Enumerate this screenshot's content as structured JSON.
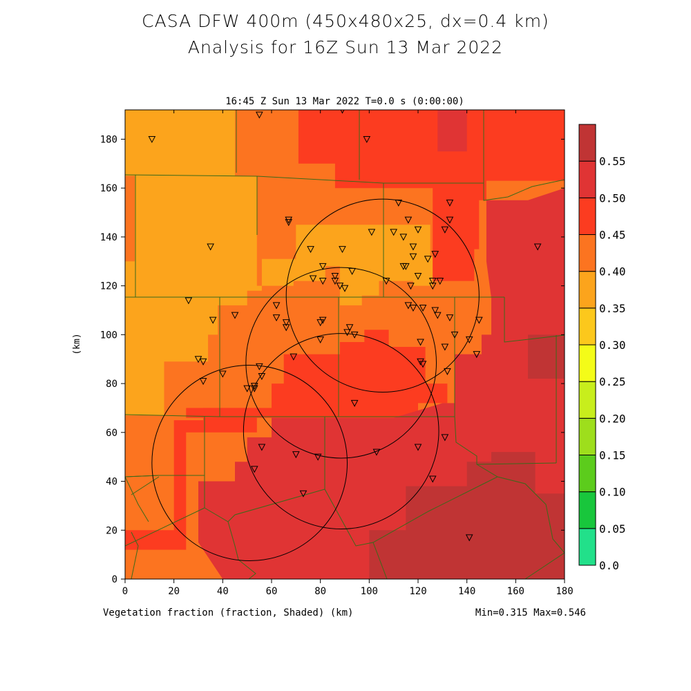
{
  "header": {
    "title_line1": "CASA DFW 400m (450x480x25, dx=0.4 km)",
    "title_line2": "Analysis for 16Z Sun 13 Mar 2022"
  },
  "plot": {
    "subtitle": "16:45 Z Sun 13 Mar 2022    T=0.0 s (0:00:00)",
    "xlabel": "Vegetation fraction (fraction, Shaded)  (km)",
    "ylabel": "(km)",
    "minmax": "Min=0.315 Max=0.546"
  },
  "chart_data": {
    "type": "heatmap",
    "variable": "Vegetation fraction",
    "units": "fraction",
    "xlim": [
      0,
      180
    ],
    "ylim": [
      0,
      192
    ],
    "x_ticks": [
      "0",
      "20",
      "40",
      "60",
      "80",
      "100",
      "120",
      "140",
      "160",
      "180"
    ],
    "y_ticks": [
      "0",
      "20",
      "40",
      "60",
      "80",
      "100",
      "120",
      "140",
      "160",
      "180"
    ],
    "min": 0.315,
    "max": 0.546,
    "colorbar": {
      "levels": [
        "0.0",
        "0.05",
        "0.10",
        "0.15",
        "0.20",
        "0.25",
        "0.30",
        "0.35",
        "0.40",
        "0.45",
        "0.50",
        "0.55"
      ],
      "colors": [
        "#22e08a",
        "#18c63c",
        "#5ccc1c",
        "#9ede1c",
        "#c8ee1c",
        "#f4fc18",
        "#fcc81c",
        "#fca41c",
        "#fc7420",
        "#fc3c20",
        "#e03434",
        "#c03434"
      ]
    },
    "regions": [
      {
        "level": 0.35,
        "color": "#fc7420",
        "poly": [
          [
            0,
            192
          ],
          [
            180,
            192
          ],
          [
            180,
            0
          ],
          [
            0,
            0
          ]
        ]
      },
      {
        "level": 0.3,
        "color": "#fca41c",
        "poly": [
          [
            0,
            192
          ],
          [
            45,
            192
          ],
          [
            45,
            165
          ],
          [
            0,
            165
          ]
        ]
      },
      {
        "level": 0.3,
        "color": "#fca41c",
        "poly": [
          [
            4,
            165
          ],
          [
            54,
            165
          ],
          [
            54,
            120
          ],
          [
            69,
            120
          ],
          [
            69,
            122
          ],
          [
            82,
            122
          ],
          [
            82,
            128
          ],
          [
            88,
            128
          ],
          [
            88,
            112
          ],
          [
            97,
            112
          ],
          [
            97,
            116
          ],
          [
            104,
            116
          ],
          [
            104,
            122
          ],
          [
            118,
            122
          ],
          [
            118,
            120
          ],
          [
            126,
            120
          ],
          [
            126,
            132
          ],
          [
            125,
            132
          ],
          [
            125,
            145
          ],
          [
            70,
            145
          ],
          [
            70,
            131
          ],
          [
            56,
            131
          ],
          [
            56,
            118
          ],
          [
            50,
            118
          ],
          [
            50,
            112
          ],
          [
            38,
            112
          ],
          [
            38,
            100
          ],
          [
            34,
            100
          ],
          [
            34,
            89
          ],
          [
            16,
            89
          ],
          [
            16,
            67
          ],
          [
            0,
            67
          ],
          [
            0,
            130
          ],
          [
            4,
            130
          ]
        ]
      },
      {
        "level": 0.4,
        "color": "#fc3c20",
        "poly": [
          [
            71,
            192
          ],
          [
            180,
            192
          ],
          [
            180,
            163
          ],
          [
            148,
            163
          ],
          [
            148,
            155
          ],
          [
            145,
            155
          ],
          [
            145,
            135
          ],
          [
            143,
            135
          ],
          [
            143,
            122
          ],
          [
            126,
            122
          ],
          [
            126,
            145
          ],
          [
            126,
            160
          ],
          [
            90,
            160
          ],
          [
            86,
            160
          ],
          [
            86,
            170
          ],
          [
            71,
            170
          ]
        ]
      },
      {
        "level": 0.4,
        "color": "#fc3c20",
        "poly": [
          [
            25,
            70
          ],
          [
            60,
            70
          ],
          [
            60,
            80
          ],
          [
            65,
            80
          ],
          [
            65,
            92
          ],
          [
            88,
            92
          ],
          [
            88,
            97
          ],
          [
            98,
            97
          ],
          [
            98,
            102
          ],
          [
            108,
            102
          ],
          [
            108,
            95
          ],
          [
            123,
            95
          ],
          [
            123,
            80
          ],
          [
            132,
            80
          ],
          [
            132,
            72
          ],
          [
            120,
            72
          ],
          [
            120,
            66
          ],
          [
            25,
            66
          ]
        ]
      },
      {
        "level": 0.4,
        "color": "#fc3c20",
        "poly": [
          [
            0,
            20
          ],
          [
            20,
            20
          ],
          [
            20,
            65
          ],
          [
            32,
            65
          ],
          [
            32,
            70
          ],
          [
            54,
            70
          ],
          [
            54,
            60
          ],
          [
            25,
            60
          ],
          [
            25,
            12
          ],
          [
            0,
            12
          ]
        ]
      },
      {
        "level": 0.45,
        "color": "#e03434",
        "poly": [
          [
            128,
            192
          ],
          [
            140,
            192
          ],
          [
            140,
            175
          ],
          [
            128,
            175
          ]
        ]
      },
      {
        "level": 0.45,
        "color": "#e03434",
        "poly": [
          [
            148,
            155
          ],
          [
            165,
            155
          ],
          [
            180,
            160
          ],
          [
            180,
            0
          ],
          [
            40,
            0
          ],
          [
            30,
            15
          ],
          [
            30,
            40
          ],
          [
            45,
            40
          ],
          [
            45,
            48
          ],
          [
            50,
            48
          ],
          [
            50,
            58
          ],
          [
            60,
            58
          ],
          [
            60,
            66
          ],
          [
            110,
            66
          ],
          [
            130,
            72
          ],
          [
            135,
            72
          ],
          [
            135,
            92
          ],
          [
            146,
            92
          ],
          [
            146,
            100
          ],
          [
            150,
            100
          ],
          [
            150,
            115
          ],
          [
            148,
            130
          ],
          [
            148,
            155
          ]
        ]
      },
      {
        "level": 0.5,
        "color": "#c03434",
        "poly": [
          [
            165,
            100
          ],
          [
            180,
            100
          ],
          [
            180,
            82
          ],
          [
            165,
            82
          ]
        ]
      },
      {
        "level": 0.5,
        "color": "#c03434",
        "poly": [
          [
            100,
            20
          ],
          [
            115,
            20
          ],
          [
            115,
            38
          ],
          [
            140,
            38
          ],
          [
            140,
            48
          ],
          [
            150,
            48
          ],
          [
            150,
            52
          ],
          [
            168,
            52
          ],
          [
            168,
            35
          ],
          [
            180,
            35
          ],
          [
            180,
            0
          ],
          [
            100,
            0
          ]
        ]
      }
    ],
    "range_rings": [
      {
        "cx": 88.5,
        "cy": 88.5,
        "r": 39
      },
      {
        "cx": 105.5,
        "cy": 116,
        "r": 39.5
      },
      {
        "cx": 88.5,
        "cy": 60.5,
        "r": 40
      },
      {
        "cx": 51,
        "cy": 47.5,
        "r": 40
      }
    ],
    "stations": [
      [
        11,
        180
      ],
      [
        55,
        190
      ],
      [
        89,
        192
      ],
      [
        99,
        180
      ],
      [
        67,
        146
      ],
      [
        67,
        147
      ],
      [
        35,
        136
      ],
      [
        112,
        154
      ],
      [
        116,
        147
      ],
      [
        133,
        154
      ],
      [
        133,
        147
      ],
      [
        120,
        143
      ],
      [
        131,
        143
      ],
      [
        101,
        142
      ],
      [
        76,
        135
      ],
      [
        89,
        135
      ],
      [
        114,
        140
      ],
      [
        110,
        142
      ],
      [
        118,
        136
      ],
      [
        118,
        132
      ],
      [
        124,
        131
      ],
      [
        127,
        133
      ],
      [
        115,
        128
      ],
      [
        114,
        128
      ],
      [
        120,
        124
      ],
      [
        126,
        122
      ],
      [
        129,
        122
      ],
      [
        126,
        120
      ],
      [
        93,
        126
      ],
      [
        77,
        123
      ],
      [
        81,
        122
      ],
      [
        86,
        122
      ],
      [
        88,
        120
      ],
      [
        90,
        119
      ],
      [
        81,
        128
      ],
      [
        86,
        124
      ],
      [
        107,
        122
      ],
      [
        117,
        120
      ],
      [
        116,
        112
      ],
      [
        118,
        111
      ],
      [
        122,
        111
      ],
      [
        128,
        108
      ],
      [
        127,
        110
      ],
      [
        133,
        107
      ],
      [
        145,
        106
      ],
      [
        26,
        114
      ],
      [
        36,
        106
      ],
      [
        45,
        108
      ],
      [
        62,
        112
      ],
      [
        62,
        107
      ],
      [
        66,
        105
      ],
      [
        66,
        103
      ],
      [
        81,
        106
      ],
      [
        80,
        105
      ],
      [
        91,
        101
      ],
      [
        92,
        103
      ],
      [
        94,
        100
      ],
      [
        80,
        98
      ],
      [
        121,
        97
      ],
      [
        121,
        89
      ],
      [
        122,
        88
      ],
      [
        141,
        98
      ],
      [
        144,
        92
      ],
      [
        135,
        100
      ],
      [
        131,
        95
      ],
      [
        132,
        85
      ],
      [
        30,
        90
      ],
      [
        32,
        89
      ],
      [
        32,
        81
      ],
      [
        40,
        84
      ],
      [
        55,
        87
      ],
      [
        56,
        83
      ],
      [
        69,
        91
      ],
      [
        50,
        78
      ],
      [
        53,
        78
      ],
      [
        53,
        79
      ],
      [
        94,
        72
      ],
      [
        56,
        54
      ],
      [
        70,
        51
      ],
      [
        79,
        50
      ],
      [
        103,
        52
      ],
      [
        120,
        54
      ],
      [
        131,
        58
      ],
      [
        126,
        41
      ],
      [
        53,
        45
      ],
      [
        73,
        35
      ],
      [
        141,
        17
      ],
      [
        169,
        136
      ]
    ]
  }
}
